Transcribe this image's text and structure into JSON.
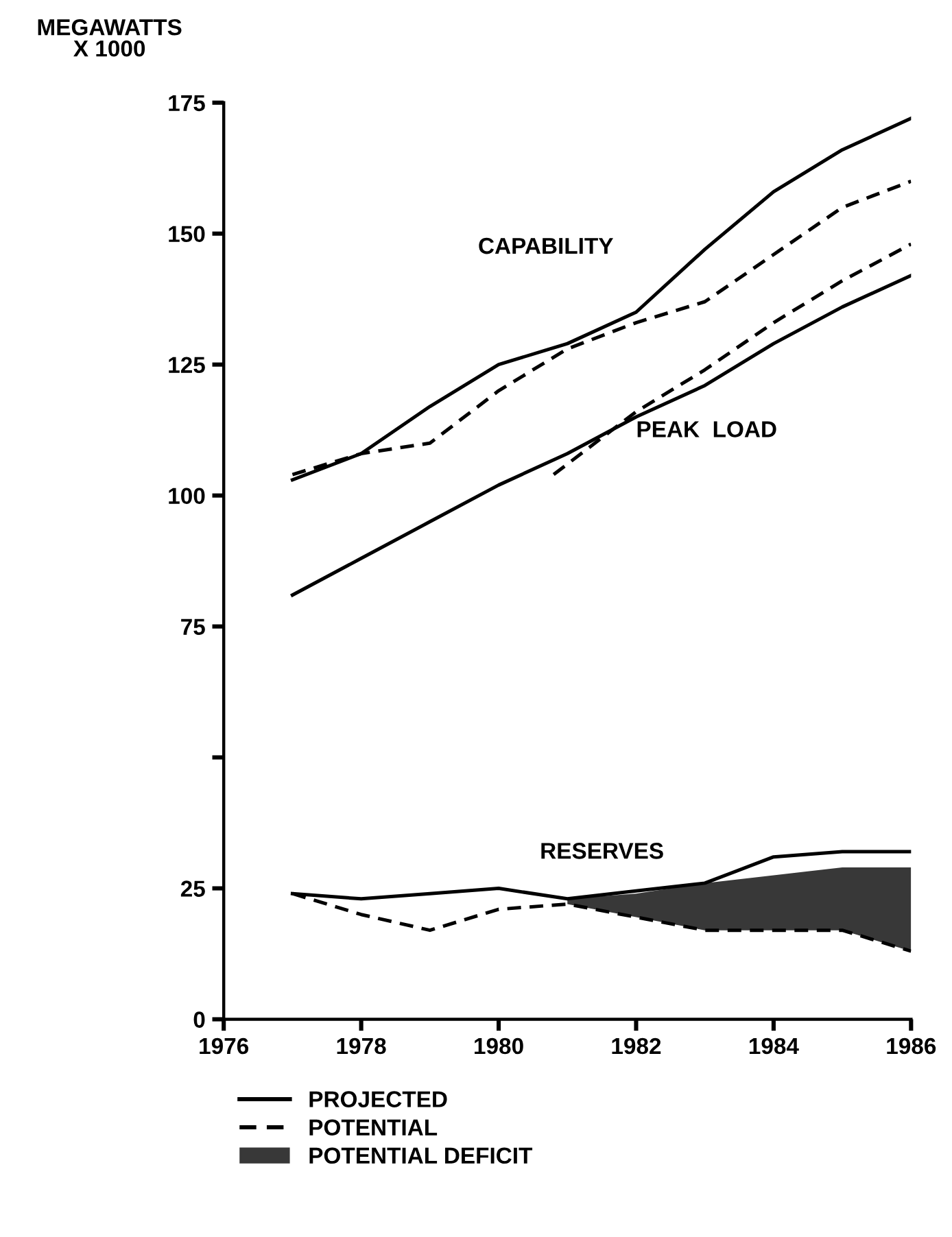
{
  "chart_data": {
    "type": "line",
    "ylabel": "MEGAWATTS\nX 1000",
    "xlim": [
      1976,
      1986
    ],
    "xticks": [
      1976,
      1978,
      1980,
      1982,
      1984,
      1986
    ],
    "ylim": [
      0,
      175
    ],
    "yticks": [
      0,
      25,
      {
        "value": 50,
        "label": null
      },
      75,
      100,
      125,
      150,
      175
    ],
    "grid": false,
    "legend": "bottom",
    "marker": "none",
    "series": [
      {
        "name": "PROJECTED",
        "color": "#000000",
        "line_style": "solid",
        "x": [
          1977,
          1978,
          1979,
          1980,
          1981,
          1982,
          1983,
          1984,
          1985,
          1986
        ],
        "values": [
          103,
          108,
          117,
          125,
          129,
          135,
          147,
          158,
          166,
          172
        ]
      },
      {
        "name": "POTENTIAL",
        "color": "#000000",
        "line_style": "dashed",
        "x": [
          1977,
          1978,
          1979,
          1980,
          1981,
          1982,
          1983,
          1984,
          1985,
          1986
        ],
        "values": [
          104,
          108,
          110,
          120,
          128,
          133,
          137,
          146,
          155,
          160
        ]
      },
      {
        "color": "#000000",
        "line_style": "solid",
        "x": [
          1977,
          1978,
          1979,
          1980,
          1981,
          1982,
          1983,
          1984,
          1985,
          1986
        ],
        "values": [
          81,
          88,
          95,
          102,
          108,
          115,
          121,
          129,
          136,
          142
        ]
      },
      {
        "color": "#000000",
        "line_style": "dashed",
        "x": [
          1980.8,
          1981,
          1982,
          1983,
          1984,
          1985,
          1986
        ],
        "values": [
          104,
          106,
          116,
          124,
          133,
          141,
          148
        ]
      },
      {
        "color": "#000000",
        "line_style": "solid",
        "x": [
          1977,
          1978,
          1979,
          1980,
          1981,
          1982,
          1983,
          1984,
          1985,
          1986
        ],
        "values": [
          24,
          23,
          24,
          25,
          23,
          24.5,
          26,
          31,
          32,
          32
        ]
      },
      {
        "color": "#000000",
        "line_style": "dashed",
        "x": [
          1977,
          1978,
          1979,
          1980,
          1981,
          1982,
          1983,
          1984,
          1985,
          1986
        ],
        "values": [
          24,
          20,
          17,
          21,
          22,
          19.5,
          17,
          17,
          17,
          13
        ],
        "lower": [
          null,
          null,
          null,
          null,
          22,
          19.5,
          17,
          17,
          17,
          13
        ],
        "upper": [
          null,
          null,
          null,
          null,
          23,
          24,
          26,
          27.5,
          29,
          29
        ]
      }
    ],
    "annotations": [
      "CAPABILITY",
      "PEAK  LOAD",
      "RESERVES",
      "POTENTIAL DEFICIT"
    ]
  }
}
